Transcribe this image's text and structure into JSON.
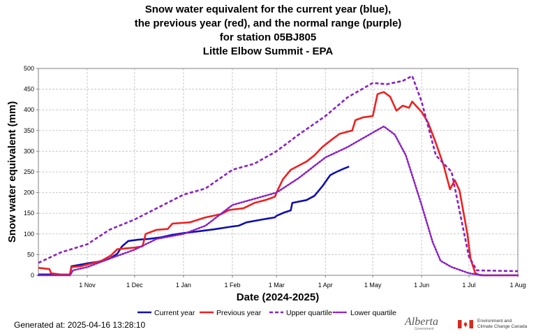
{
  "title_lines": [
    "Snow water equivalent for the current year (blue),",
    "the previous year (red), and the normal range (purple)",
    "for station 05BJ805",
    "Little Elbow Summit - EPA"
  ],
  "generated": "Generated at: 2025-04-16 13:28:10",
  "logos": {
    "alberta": "Alberta",
    "alberta_sub": "Government",
    "eccc_line1": "Environment and",
    "eccc_line2": "Climate Change Canada"
  },
  "chart_data": {
    "type": "line",
    "xlabel": "Date (2024-2025)",
    "ylabel": "Snow water equivalent (mm)",
    "xlim": [
      "2024-10-01",
      "2025-08-01"
    ],
    "ylim": [
      0,
      500
    ],
    "yticks": [
      0,
      50,
      100,
      150,
      200,
      250,
      300,
      350,
      400,
      450,
      500
    ],
    "xticks": [
      {
        "date": "2024-11-01",
        "label": "1 Nov"
      },
      {
        "date": "2024-12-01",
        "label": "1 Dec"
      },
      {
        "date": "2025-01-01",
        "label": "1 Jan"
      },
      {
        "date": "2025-02-01",
        "label": "1 Feb"
      },
      {
        "date": "2025-03-01",
        "label": "1 Mar"
      },
      {
        "date": "2025-04-01",
        "label": "1 Apr"
      },
      {
        "date": "2025-05-01",
        "label": "1 May"
      },
      {
        "date": "2025-06-01",
        "label": "1 Jun"
      },
      {
        "date": "2025-07-01",
        "label": "1 Jul"
      },
      {
        "date": "2025-08-01",
        "label": "1 Aug"
      }
    ],
    "grid": true,
    "legend_position": "bottom",
    "series": [
      {
        "name": "Current year",
        "color": "#1010b0",
        "dash": "solid",
        "points": [
          [
            "2024-10-01",
            2
          ],
          [
            "2024-10-15",
            2
          ],
          [
            "2024-10-21",
            2
          ],
          [
            "2024-10-22",
            22
          ],
          [
            "2024-10-28",
            26
          ],
          [
            "2024-11-03",
            30
          ],
          [
            "2024-11-10",
            34
          ],
          [
            "2024-11-15",
            40
          ],
          [
            "2024-11-20",
            52
          ],
          [
            "2024-11-23",
            70
          ],
          [
            "2024-11-27",
            83
          ],
          [
            "2024-12-03",
            86
          ],
          [
            "2024-12-10",
            88
          ],
          [
            "2024-12-18",
            92
          ],
          [
            "2024-12-25",
            98
          ],
          [
            "2025-01-01",
            102
          ],
          [
            "2025-01-10",
            106
          ],
          [
            "2025-01-20",
            111
          ],
          [
            "2025-02-01",
            118
          ],
          [
            "2025-02-05",
            120
          ],
          [
            "2025-02-10",
            128
          ],
          [
            "2025-02-20",
            135
          ],
          [
            "2025-02-28",
            140
          ],
          [
            "2025-03-01",
            144
          ],
          [
            "2025-03-06",
            152
          ],
          [
            "2025-03-10",
            157
          ],
          [
            "2025-03-11",
            175
          ],
          [
            "2025-03-20",
            182
          ],
          [
            "2025-03-25",
            192
          ],
          [
            "2025-03-30",
            215
          ],
          [
            "2025-04-04",
            242
          ],
          [
            "2025-04-08",
            250
          ],
          [
            "2025-04-12",
            257
          ],
          [
            "2025-04-16",
            263
          ]
        ]
      },
      {
        "name": "Previous year",
        "color": "#ee2020",
        "dash": "solid",
        "points": [
          [
            "2024-10-01",
            18
          ],
          [
            "2024-10-08",
            15
          ],
          [
            "2024-10-09",
            5
          ],
          [
            "2024-10-15",
            2
          ],
          [
            "2024-10-21",
            2
          ],
          [
            "2024-10-22",
            20
          ],
          [
            "2024-10-28",
            22
          ],
          [
            "2024-11-03",
            28
          ],
          [
            "2024-11-10",
            35
          ],
          [
            "2024-11-16",
            48
          ],
          [
            "2024-11-20",
            63
          ],
          [
            "2024-12-01",
            67
          ],
          [
            "2024-12-06",
            70
          ],
          [
            "2024-12-08",
            100
          ],
          [
            "2024-12-15",
            110
          ],
          [
            "2024-12-22",
            112
          ],
          [
            "2024-12-25",
            125
          ],
          [
            "2025-01-05",
            128
          ],
          [
            "2025-01-15",
            140
          ],
          [
            "2025-01-25",
            148
          ],
          [
            "2025-01-30",
            158
          ],
          [
            "2025-02-08",
            162
          ],
          [
            "2025-02-15",
            175
          ],
          [
            "2025-02-22",
            182
          ],
          [
            "2025-02-28",
            190
          ],
          [
            "2025-03-01",
            200
          ],
          [
            "2025-03-05",
            232
          ],
          [
            "2025-03-10",
            255
          ],
          [
            "2025-03-15",
            265
          ],
          [
            "2025-03-20",
            275
          ],
          [
            "2025-03-25",
            290
          ],
          [
            "2025-03-30",
            310
          ],
          [
            "2025-04-05",
            328
          ],
          [
            "2025-04-10",
            342
          ],
          [
            "2025-04-18",
            350
          ],
          [
            "2025-04-20",
            375
          ],
          [
            "2025-04-25",
            382
          ],
          [
            "2025-05-01",
            385
          ],
          [
            "2025-05-04",
            438
          ],
          [
            "2025-05-08",
            443
          ],
          [
            "2025-05-12",
            432
          ],
          [
            "2025-05-16",
            398
          ],
          [
            "2025-05-20",
            410
          ],
          [
            "2025-05-24",
            405
          ],
          [
            "2025-05-26",
            420
          ],
          [
            "2025-06-01",
            395
          ],
          [
            "2025-06-05",
            370
          ],
          [
            "2025-06-10",
            320
          ],
          [
            "2025-06-15",
            265
          ],
          [
            "2025-06-19",
            208
          ],
          [
            "2025-06-22",
            230
          ],
          [
            "2025-06-25",
            205
          ],
          [
            "2025-06-30",
            100
          ],
          [
            "2025-07-02",
            40
          ],
          [
            "2025-07-05",
            5
          ],
          [
            "2025-07-08",
            0
          ],
          [
            "2025-08-01",
            0
          ]
        ]
      },
      {
        "name": "Upper quartile",
        "color": "#8a20c0",
        "dash": "dashed",
        "points": [
          [
            "2024-10-01",
            30
          ],
          [
            "2024-10-15",
            55
          ],
          [
            "2024-11-01",
            75
          ],
          [
            "2024-11-15",
            110
          ],
          [
            "2024-12-01",
            135
          ],
          [
            "2024-12-15",
            162
          ],
          [
            "2025-01-01",
            195
          ],
          [
            "2025-01-15",
            210
          ],
          [
            "2025-02-01",
            255
          ],
          [
            "2025-02-15",
            270
          ],
          [
            "2025-03-01",
            300
          ],
          [
            "2025-03-15",
            340
          ],
          [
            "2025-04-01",
            385
          ],
          [
            "2025-04-15",
            430
          ],
          [
            "2025-05-01",
            465
          ],
          [
            "2025-05-10",
            462
          ],
          [
            "2025-05-20",
            470
          ],
          [
            "2025-05-26",
            482
          ],
          [
            "2025-06-01",
            420
          ],
          [
            "2025-06-10",
            290
          ],
          [
            "2025-06-20",
            250
          ],
          [
            "2025-06-28",
            100
          ],
          [
            "2025-07-01",
            45
          ],
          [
            "2025-07-06",
            12
          ],
          [
            "2025-08-01",
            10
          ]
        ]
      },
      {
        "name": "Lower quartile",
        "color": "#8a20c0",
        "dash": "dotted",
        "points": [
          [
            "2024-10-01",
            0
          ],
          [
            "2024-10-21",
            0
          ],
          [
            "2024-10-23",
            12
          ],
          [
            "2024-11-01",
            20
          ],
          [
            "2024-11-15",
            40
          ],
          [
            "2024-12-01",
            62
          ],
          [
            "2024-12-15",
            88
          ],
          [
            "2025-01-01",
            100
          ],
          [
            "2025-01-15",
            120
          ],
          [
            "2025-02-01",
            170
          ],
          [
            "2025-02-15",
            185
          ],
          [
            "2025-03-01",
            200
          ],
          [
            "2025-03-15",
            235
          ],
          [
            "2025-04-01",
            285
          ],
          [
            "2025-04-15",
            310
          ],
          [
            "2025-05-01",
            345
          ],
          [
            "2025-05-08",
            360
          ],
          [
            "2025-05-15",
            340
          ],
          [
            "2025-05-22",
            290
          ],
          [
            "2025-06-01",
            170
          ],
          [
            "2025-06-08",
            80
          ],
          [
            "2025-06-13",
            35
          ],
          [
            "2025-06-20",
            20
          ],
          [
            "2025-07-01",
            5
          ],
          [
            "2025-07-10",
            0
          ],
          [
            "2025-08-01",
            0
          ]
        ]
      }
    ]
  }
}
